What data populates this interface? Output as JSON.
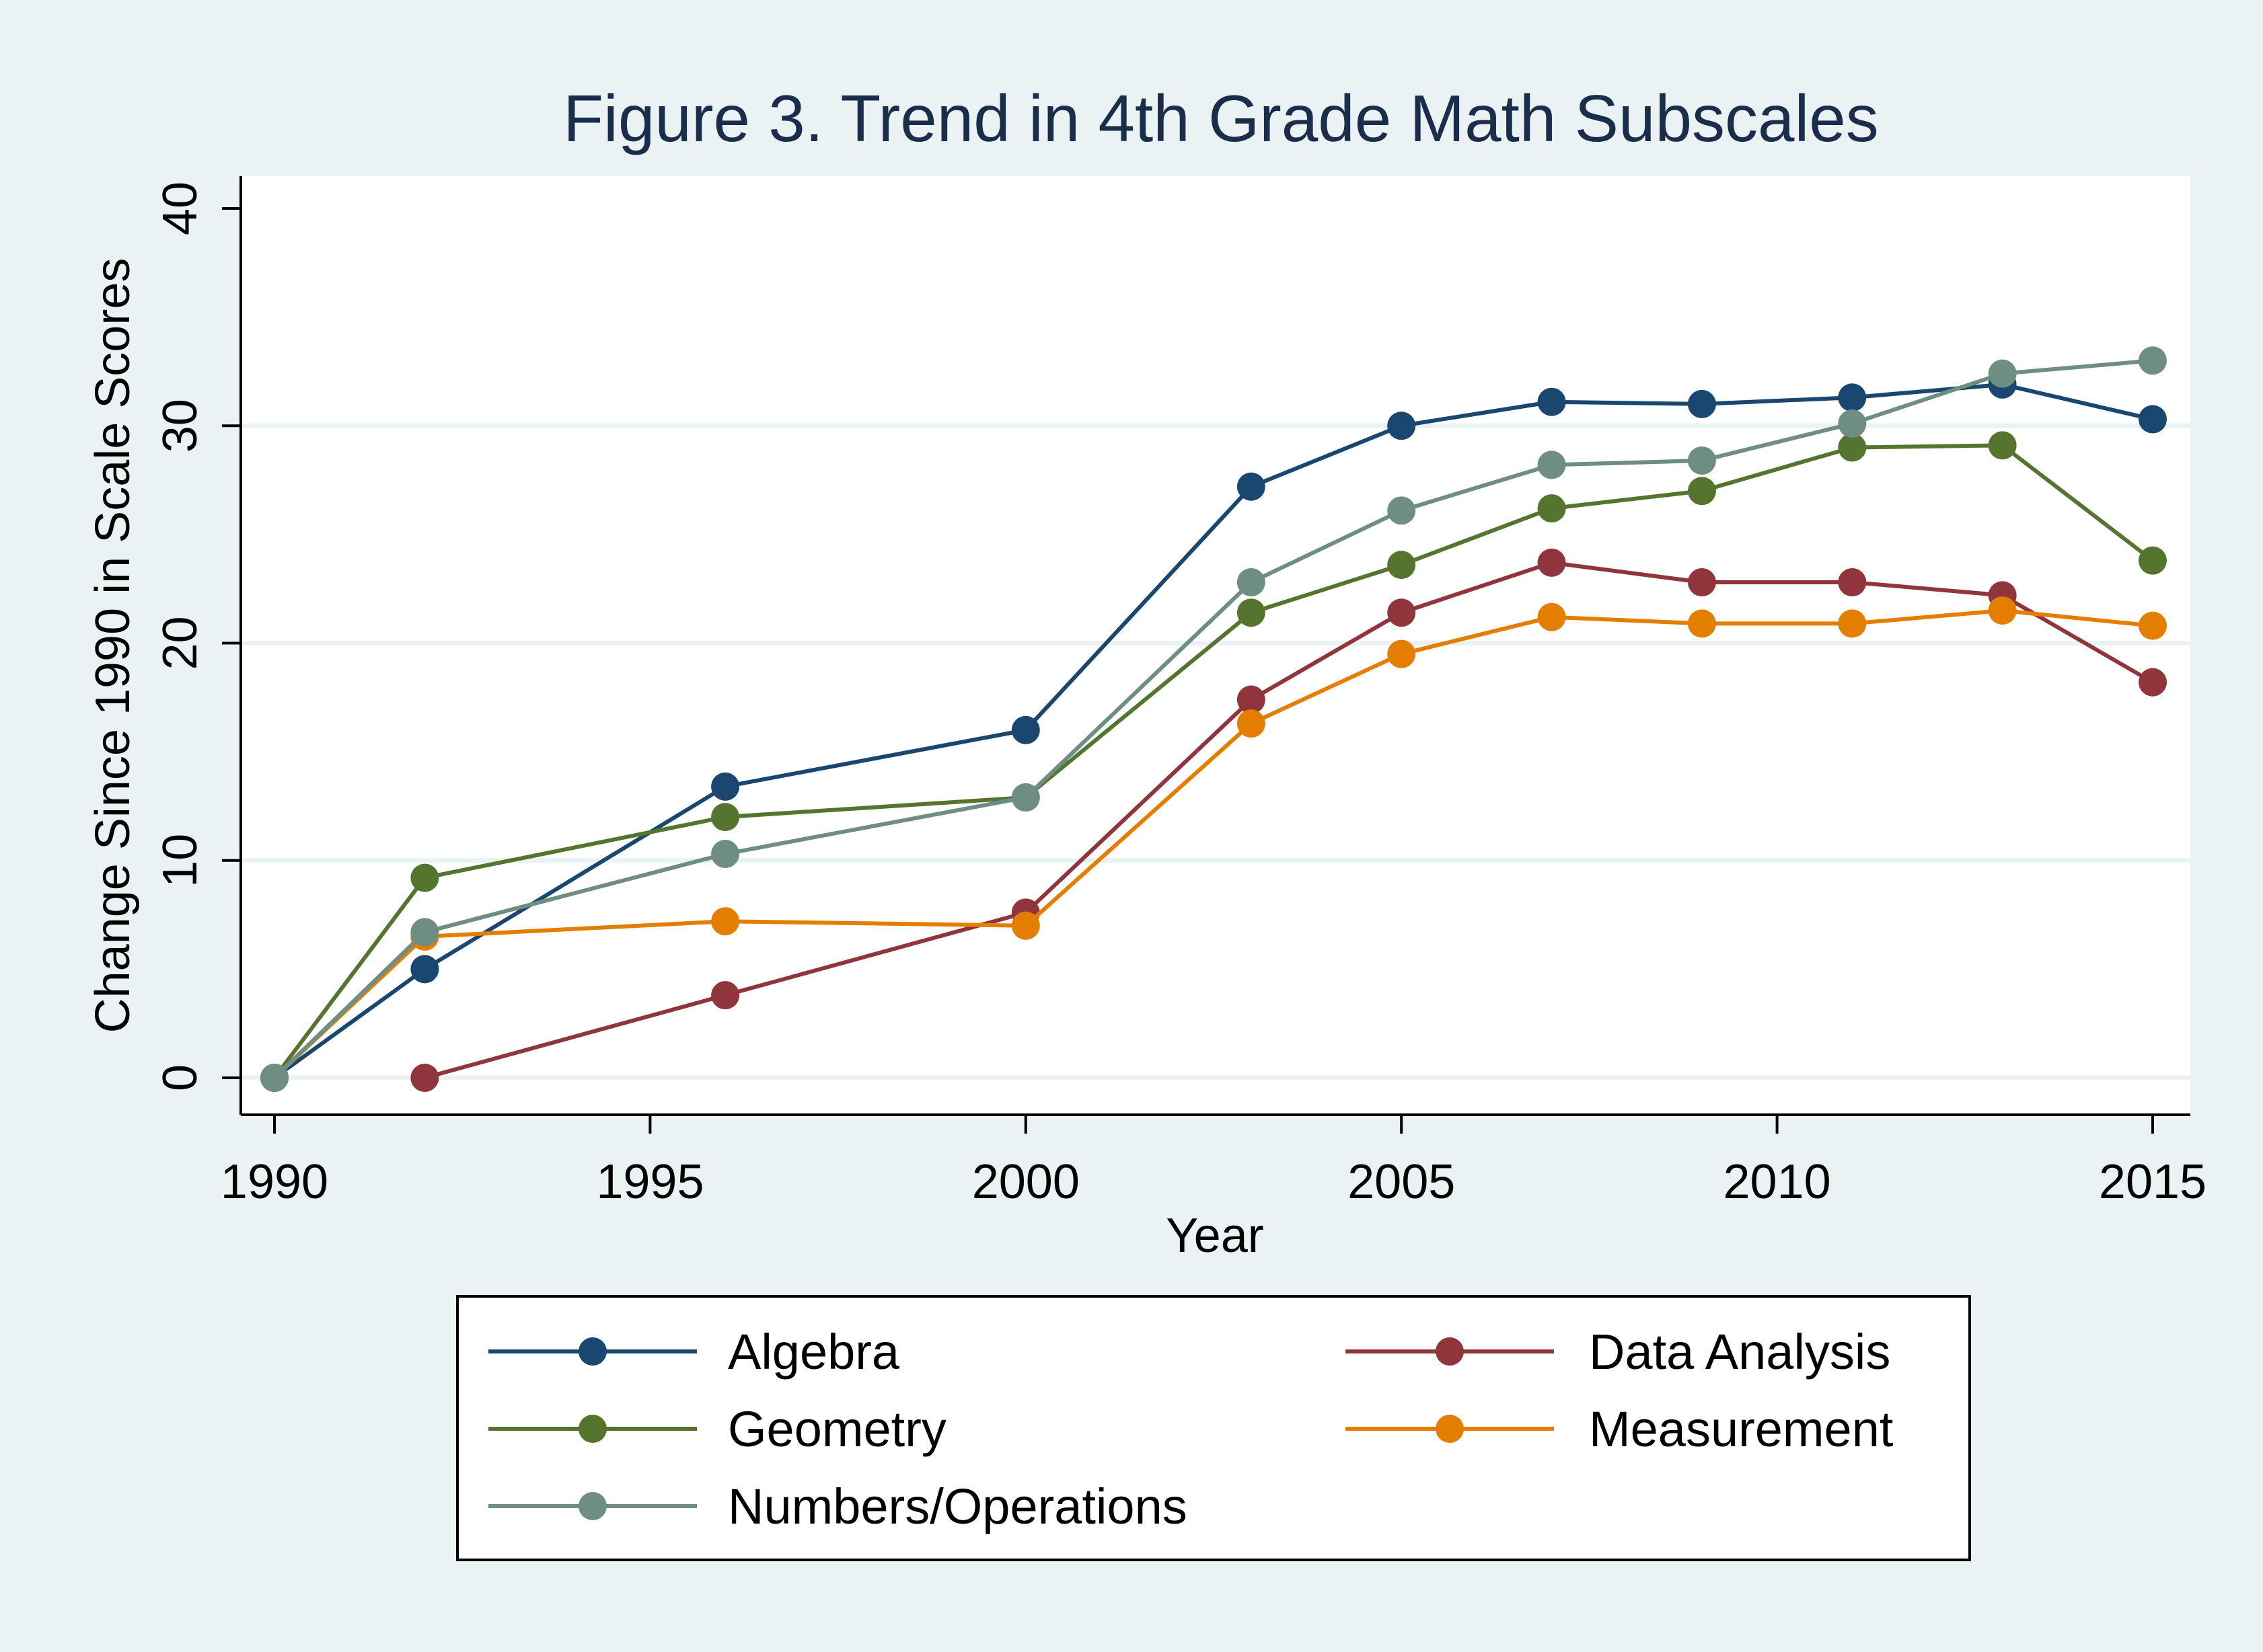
{
  "chart_data": {
    "type": "line",
    "title": "Figure 3. Trend in 4th Grade Math Subscales",
    "xlabel": "Year",
    "ylabel": "Change Since 1990 in Scale Scores",
    "xlim": [
      1990,
      2015
    ],
    "ylim": [
      0,
      40
    ],
    "x_ticks": [
      1990,
      1995,
      2000,
      2005,
      2010,
      2015
    ],
    "y_ticks": [
      0,
      10,
      20,
      30,
      40
    ],
    "grid": true,
    "legend_position": "bottom",
    "series": [
      {
        "name": "Algebra",
        "color": "#1a476f",
        "x": [
          1990,
          1992,
          1996,
          2000,
          2003,
          2005,
          2007,
          2009,
          2011,
          2013,
          2015
        ],
        "y": [
          0,
          5.0,
          13.4,
          16.0,
          27.2,
          30.0,
          31.1,
          31.0,
          31.3,
          31.9,
          30.3
        ]
      },
      {
        "name": "Data Analysis",
        "color": "#90353b",
        "x": [
          1992,
          1996,
          2000,
          2003,
          2005,
          2007,
          2009,
          2011,
          2013,
          2015
        ],
        "y": [
          0,
          3.8,
          7.6,
          17.4,
          21.4,
          23.7,
          22.8,
          22.8,
          22.2,
          18.2
        ]
      },
      {
        "name": "Geometry",
        "color": "#55752f",
        "x": [
          1990,
          1992,
          1996,
          2000,
          2003,
          2005,
          2007,
          2009,
          2011,
          2013,
          2015
        ],
        "y": [
          0,
          9.2,
          12.0,
          12.9,
          21.4,
          23.6,
          26.2,
          27.0,
          29.0,
          29.1,
          23.8
        ]
      },
      {
        "name": "Measurement",
        "color": "#e37e00",
        "x": [
          1990,
          1992,
          1996,
          2000,
          2003,
          2005,
          2007,
          2009,
          2011,
          2013,
          2015
        ],
        "y": [
          0,
          6.5,
          7.2,
          7.0,
          16.3,
          19.5,
          21.2,
          20.9,
          20.9,
          21.5,
          20.8
        ]
      },
      {
        "name": "Numbers/Operations",
        "color": "#6e8e84",
        "x": [
          1990,
          1992,
          1996,
          2000,
          2003,
          2005,
          2007,
          2009,
          2011,
          2013,
          2015
        ],
        "y": [
          0,
          6.7,
          10.3,
          12.9,
          22.8,
          26.1,
          28.2,
          28.4,
          30.1,
          32.4,
          33.0
        ]
      }
    ]
  },
  "colors": {
    "outer_background": "#eaf2f3",
    "plot_background": "#ffffff",
    "grid": "#eaf2f3",
    "title": "#1a2e4c"
  }
}
